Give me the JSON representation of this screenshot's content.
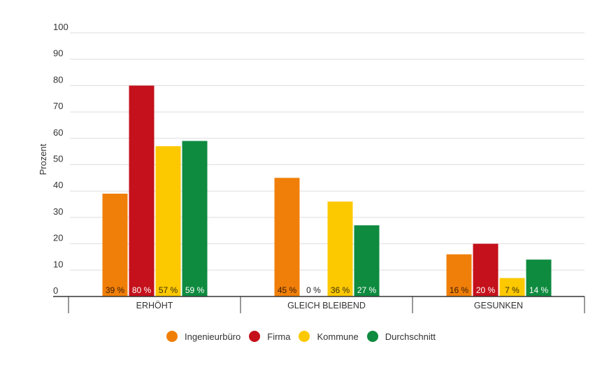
{
  "chart_data": {
    "type": "bar",
    "title": "",
    "xlabel": "",
    "ylabel": "Prozent",
    "ylim": [
      0,
      100
    ],
    "yticks": [
      0,
      10,
      20,
      30,
      40,
      50,
      60,
      70,
      80,
      90,
      100
    ],
    "categories": [
      "ERHÖHT",
      "GLEICH BLEIBEND",
      "GESUNKEN"
    ],
    "series": [
      {
        "name": "Ingenieurbüro",
        "color": "#f07f09",
        "values": [
          39,
          45,
          16
        ],
        "labels": [
          "39 %",
          "45 %",
          "16 %"
        ]
      },
      {
        "name": "Firma",
        "color": "#c4111b",
        "values": [
          80,
          0,
          20
        ],
        "labels": [
          "80 %",
          "0 %",
          "20 %"
        ]
      },
      {
        "name": "Kommune",
        "color": "#fcc800",
        "values": [
          57,
          36,
          7
        ],
        "labels": [
          "57 %",
          "36 %",
          "7 %"
        ]
      },
      {
        "name": "Durchschnitt",
        "color": "#0e8b3f",
        "values": [
          59,
          27,
          14
        ],
        "labels": [
          "59 %",
          "27 %",
          "14 %"
        ]
      }
    ],
    "bar_label_colors": [
      "#3a1a00",
      "#ffffff",
      "#3a3000",
      "#ffffff"
    ],
    "legend_position": "bottom"
  }
}
